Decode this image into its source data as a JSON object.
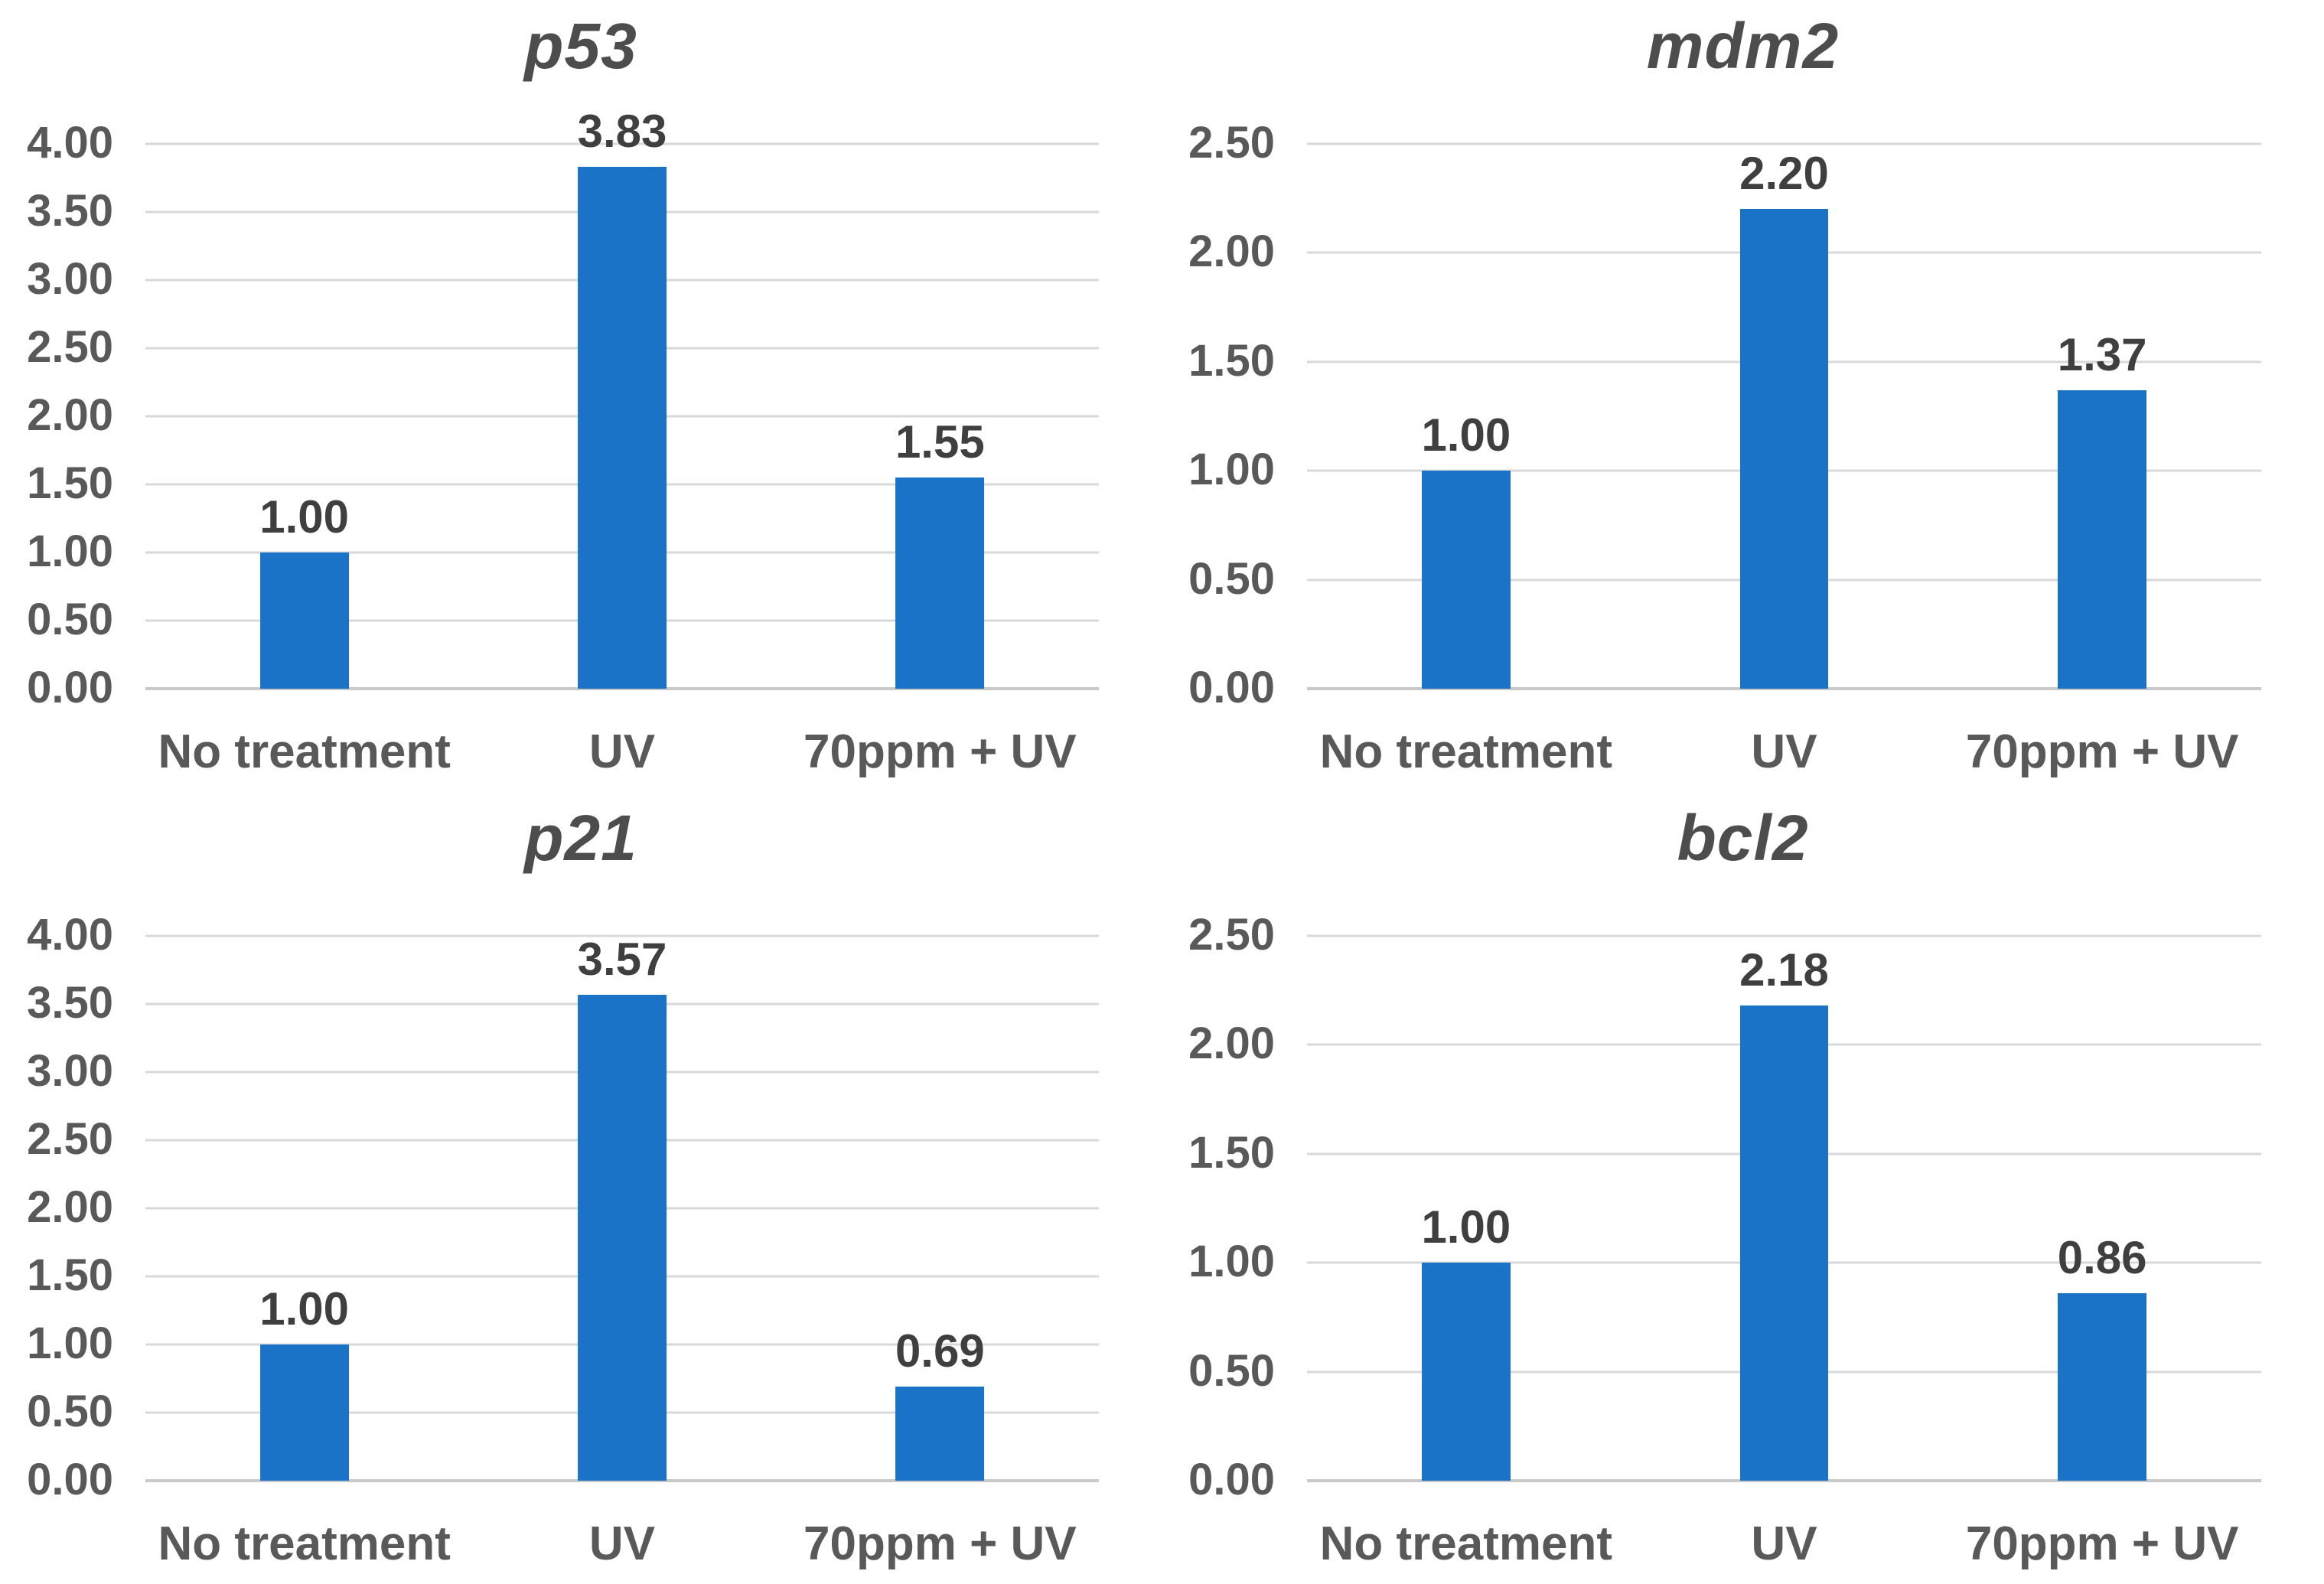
{
  "figure": {
    "background": "#ffffff",
    "bar_color": "#1b73c7",
    "gridline_color": "#d9d9d9",
    "baseline_color": "#c9c9c9",
    "title_color": "#4d4d4d",
    "tick_label_color": "#595959",
    "data_label_color": "#3f3f3f",
    "layout": "2x2-grid",
    "legend": "none"
  },
  "chart_data": [
    {
      "type": "bar",
      "title": "p53",
      "categories": [
        "No treatment",
        "UV",
        "70ppm + UV"
      ],
      "values": [
        1.0,
        3.83,
        1.55
      ],
      "value_labels": [
        "1.00",
        "3.83",
        "1.55"
      ],
      "xlabel": "",
      "ylabel": "",
      "ylim": [
        0,
        4
      ],
      "y_ticks": [
        "4.00",
        "3.50",
        "3.00",
        "2.50",
        "2.00",
        "1.50",
        "1.00",
        "0.50",
        "0.00"
      ],
      "grid": true,
      "legend_position": "none"
    },
    {
      "type": "bar",
      "title": "mdm2",
      "categories": [
        "No treatment",
        "UV",
        "70ppm + UV"
      ],
      "values": [
        1.0,
        2.2,
        1.37
      ],
      "value_labels": [
        "1.00",
        "2.20",
        "1.37"
      ],
      "xlabel": "",
      "ylabel": "",
      "ylim": [
        0,
        2.5
      ],
      "y_ticks": [
        "2.50",
        "2.00",
        "1.50",
        "1.00",
        "0.50",
        "0.00"
      ],
      "grid": true,
      "legend_position": "none"
    },
    {
      "type": "bar",
      "title": "p21",
      "categories": [
        "No treatment",
        "UV",
        "70ppm + UV"
      ],
      "values": [
        1.0,
        3.57,
        0.69
      ],
      "value_labels": [
        "1.00",
        "3.57",
        "0.69"
      ],
      "xlabel": "",
      "ylabel": "",
      "ylim": [
        0,
        4
      ],
      "y_ticks": [
        "4.00",
        "3.50",
        "3.00",
        "2.50",
        "2.00",
        "1.50",
        "1.00",
        "0.50",
        "0.00"
      ],
      "grid": true,
      "legend_position": "none"
    },
    {
      "type": "bar",
      "title": "bcl2",
      "categories": [
        "No treatment",
        "UV",
        "70ppm + UV"
      ],
      "values": [
        1.0,
        2.18,
        0.86
      ],
      "value_labels": [
        "1.00",
        "2.18",
        "0.86"
      ],
      "xlabel": "",
      "ylabel": "",
      "ylim": [
        0,
        2.5
      ],
      "y_ticks": [
        "2.50",
        "2.00",
        "1.50",
        "1.00",
        "0.50",
        "0.00"
      ],
      "grid": true,
      "legend_position": "none"
    }
  ]
}
